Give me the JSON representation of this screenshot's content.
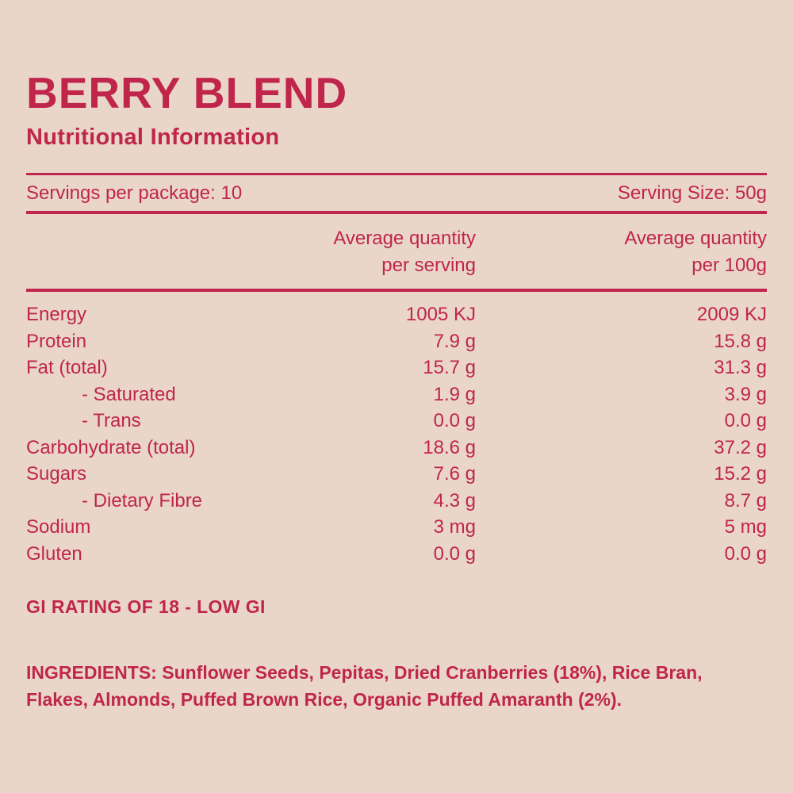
{
  "colors": {
    "background": "#e9d6c8",
    "accent": "#c0254c"
  },
  "header": {
    "title": "BERRY BLEND",
    "subtitle": "Nutritional Information"
  },
  "serving_info": {
    "servings_per_package": "Servings per package: 10",
    "serving_size": "Serving Size: 50g"
  },
  "table": {
    "col_headers": {
      "per_serving_line1": "Average quantity",
      "per_serving_line2": "per serving",
      "per_100g_line1": "Average quantity",
      "per_100g_line2": "per 100g"
    },
    "rows": [
      {
        "label": "Energy",
        "per_serving": "1005 KJ",
        "per_100g": "2009 KJ"
      },
      {
        "label": "Protein",
        "per_serving": "7.9 g",
        "per_100g": "15.8 g"
      },
      {
        "label": "Fat (total)",
        "per_serving": "15.7 g",
        "per_100g": "31.3 g"
      },
      {
        "label": "- Saturated",
        "per_serving": "1.9 g",
        "per_100g": "3.9 g"
      },
      {
        "label": "- Trans",
        "per_serving": "0.0 g",
        "per_100g": "0.0 g"
      },
      {
        "label": "Carbohydrate (total)",
        "per_serving": "18.6 g",
        "per_100g": "37.2 g"
      },
      {
        "label": "Sugars",
        "per_serving": "7.6 g",
        "per_100g": "15.2 g"
      },
      {
        "label": "- Dietary Fibre",
        "per_serving": "4.3 g",
        "per_100g": "8.7 g"
      },
      {
        "label": "Sodium",
        "per_serving": "3 mg",
        "per_100g": "5 mg"
      },
      {
        "label": "Gluten",
        "per_serving": "0.0 g",
        "per_100g": "0.0 g"
      }
    ]
  },
  "gi_rating": "GI RATING OF 18 - LOW GI",
  "ingredients": "INGREDIENTS: Sunflower Seeds, Pepitas, Dried Cranberries (18%), Rice Bran, Flakes, Almonds, Puffed Brown Rice, Organic Puffed Amaranth (2%)."
}
